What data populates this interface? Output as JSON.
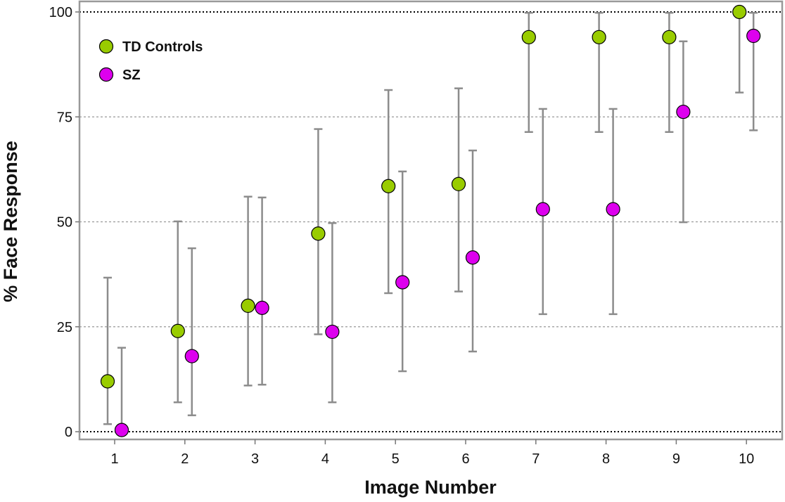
{
  "chart_data": {
    "type": "scatter",
    "title": "",
    "xlabel": "Image Number",
    "ylabel": "% Face Response",
    "categories": [
      "1",
      "2",
      "3",
      "4",
      "5",
      "6",
      "7",
      "8",
      "9",
      "10"
    ],
    "ylim": [
      0,
      100
    ],
    "yticks": [
      "0",
      "25",
      "50",
      "75",
      "100"
    ],
    "grid": "dotted horizontal",
    "legend_position": "top-left",
    "series": [
      {
        "name": "TD Controls",
        "color": "#99cc00",
        "values": [
          12,
          24,
          30,
          47.2,
          58.5,
          59,
          94,
          94,
          94,
          100
        ],
        "error_low": [
          1.8,
          7,
          11,
          23.2,
          33,
          33.4,
          71.4,
          71.4,
          71.4,
          80.8
        ],
        "error_high": [
          36.7,
          50.1,
          56,
          72.1,
          81.4,
          81.8,
          99.8,
          99.8,
          99.8,
          100
        ]
      },
      {
        "name": "SZ",
        "color": "#dd00ee",
        "values": [
          0.4,
          18,
          29.5,
          23.8,
          35.6,
          41.5,
          53,
          53,
          76.2,
          94.3
        ],
        "error_low": [
          0,
          3.9,
          11.2,
          7,
          14.4,
          19.1,
          28,
          28,
          49.9,
          71.8
        ],
        "error_high": [
          20,
          43.7,
          55.8,
          49.7,
          62,
          67,
          76.9,
          76.9,
          93,
          99.8
        ]
      }
    ]
  }
}
